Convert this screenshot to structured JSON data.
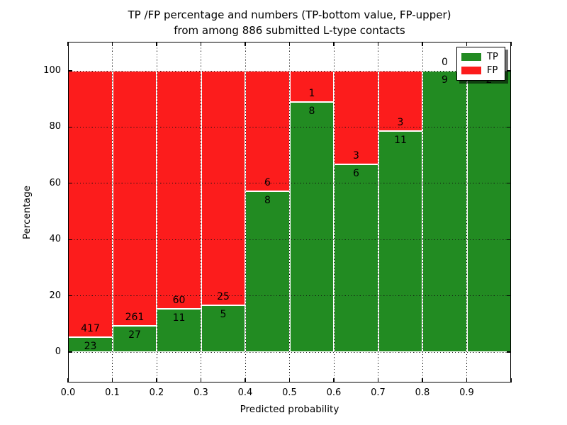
{
  "title": {
    "line1": "TP /FP percentage and numbers (TP-bottom value, FP-upper)",
    "line2": "from among 886 submitted L-type contacts"
  },
  "axes": {
    "xlabel": "Predicted probability",
    "ylabel": "Percentage",
    "x_ticks": [
      "0.0",
      "0.1",
      "0.2",
      "0.3",
      "0.4",
      "0.5",
      "0.6",
      "0.7",
      "0.8",
      "0.9"
    ],
    "y_ticks": [
      "0",
      "20",
      "40",
      "60",
      "80",
      "100"
    ]
  },
  "legend": {
    "items": [
      {
        "label": "TP",
        "color": "#228b22"
      },
      {
        "label": "FP",
        "color": "#fc1c1c"
      }
    ]
  },
  "chart_data": {
    "type": "bar",
    "stacked": true,
    "title": "TP /FP percentage and numbers (TP-bottom value, FP-upper) from among 886 submitted L-type contacts",
    "xlabel": "Predicted probability",
    "ylabel": "Percentage",
    "xlim": [
      0.0,
      1.0
    ],
    "ylim": [
      -11,
      110
    ],
    "bin_width": 0.1,
    "categories": [
      "0.0-0.1",
      "0.1-0.2",
      "0.2-0.3",
      "0.3-0.4",
      "0.4-0.5",
      "0.5-0.6",
      "0.6-0.7",
      "0.7-0.8",
      "0.8-0.9",
      "0.9-1.0"
    ],
    "series": [
      {
        "name": "TP",
        "color": "#228b22",
        "counts": [
          23,
          27,
          11,
          5,
          8,
          8,
          6,
          11,
          9,
          2
        ],
        "percent": [
          5.23,
          9.38,
          15.49,
          16.67,
          57.14,
          88.89,
          66.67,
          78.57,
          100.0,
          100.0
        ]
      },
      {
        "name": "FP",
        "color": "#fc1c1c",
        "counts": [
          417,
          261,
          60,
          25,
          6,
          1,
          3,
          3,
          0,
          0
        ],
        "percent": [
          94.77,
          90.62,
          84.51,
          83.33,
          42.86,
          11.11,
          33.33,
          21.43,
          0.0,
          0.0
        ]
      }
    ],
    "total_contacts": 886,
    "grid": true,
    "grid_style": "dotted",
    "legend_position": "upper right"
  }
}
